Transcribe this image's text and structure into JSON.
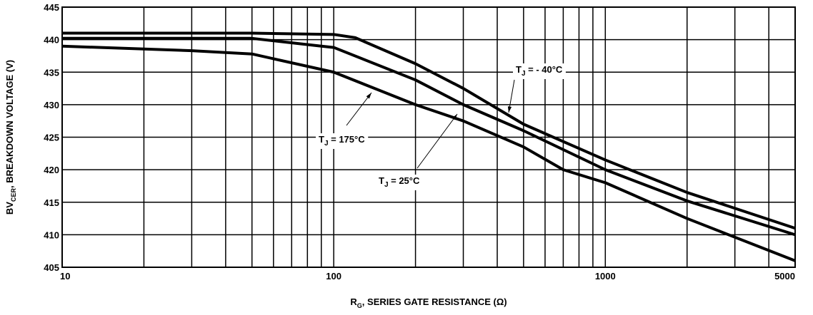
{
  "chart_data": {
    "type": "line",
    "y_label": {
      "main": "BV",
      "sub": "CER",
      "rest": ", BREAKDOWN VOLTAGE (V)"
    },
    "x_label": {
      "main": "R",
      "sub": "G",
      "rest": ", SERIES GATE RESISTANCE (Ω)"
    },
    "x_log": true,
    "xlim": [
      10,
      5000
    ],
    "xticks": [
      10,
      100,
      1000,
      5000
    ],
    "x_minor_ticks": [
      20,
      30,
      40,
      50,
      60,
      70,
      80,
      90,
      200,
      300,
      400,
      500,
      600,
      700,
      800,
      900,
      2000,
      3000,
      4000
    ],
    "ylim": [
      405,
      445
    ],
    "yticks": [
      405,
      410,
      415,
      420,
      425,
      430,
      435,
      440,
      445
    ],
    "grid": true,
    "series": [
      {
        "label": {
          "main": "T",
          "sub": "J",
          "rest": " = - 40°C"
        },
        "color": "#000000",
        "x": [
          10,
          50,
          100,
          120,
          200,
          300,
          500,
          1000,
          2000,
          5000
        ],
        "values": [
          441,
          441,
          440.8,
          440.3,
          436.3,
          432.5,
          427,
          421.5,
          416.5,
          411
        ]
      },
      {
        "label": {
          "main": "T",
          "sub": "J",
          "rest": " = 25°C"
        },
        "color": "#000000",
        "x": [
          10,
          50,
          90,
          100,
          200,
          300,
          500,
          1000,
          2000,
          5000
        ],
        "values": [
          440.2,
          440.2,
          439,
          438.8,
          433.8,
          430,
          426,
          420,
          415.2,
          410
        ]
      },
      {
        "label": {
          "main": "T",
          "sub": "J",
          "rest": " = 175°C"
        },
        "color": "#000000",
        "x": [
          10,
          30,
          50,
          100,
          200,
          300,
          500,
          700,
          1000,
          2000,
          5000
        ],
        "values": [
          439,
          438.3,
          437.8,
          435,
          430,
          427.5,
          423.5,
          420,
          418,
          412.5,
          406
        ]
      }
    ]
  }
}
